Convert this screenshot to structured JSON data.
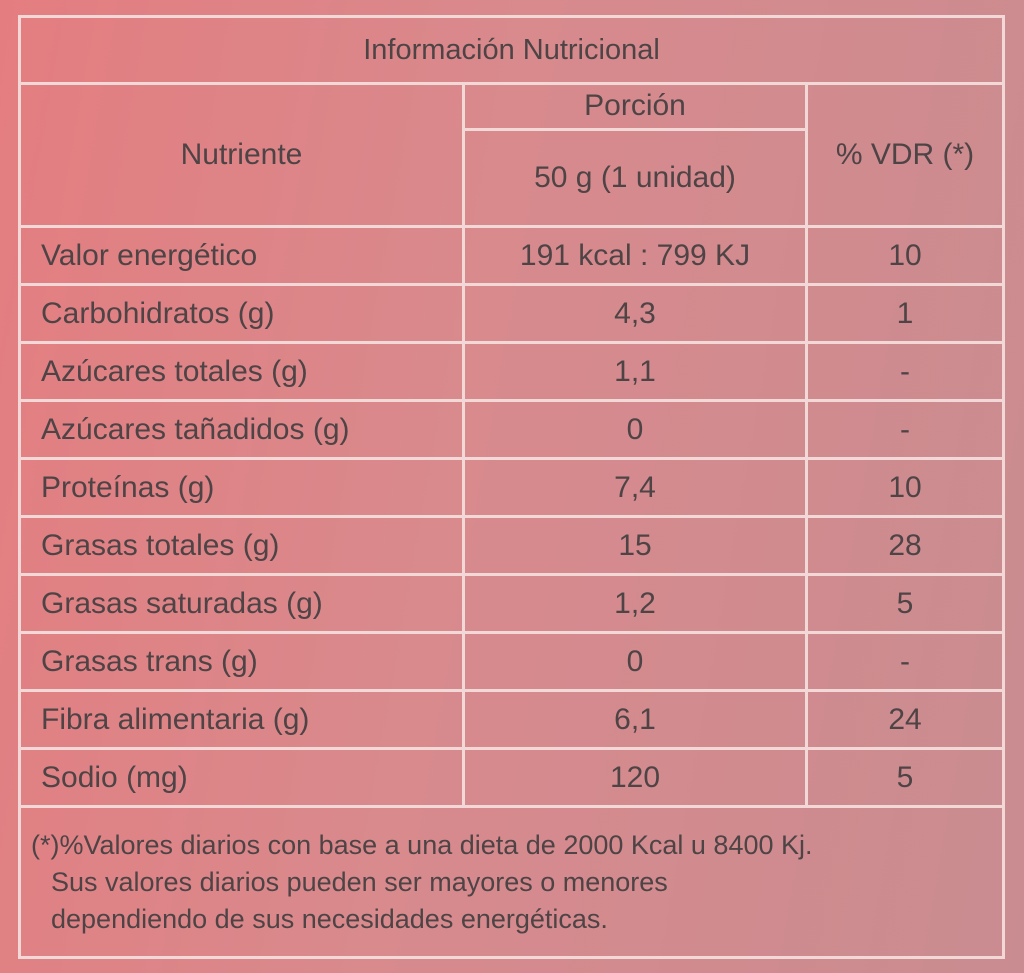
{
  "title": "Información Nutricional",
  "header": {
    "nutrient": "Nutriente",
    "portion": "Porción",
    "portion_size": "50 g (1 unidad)",
    "vdr": "% VDR (*)"
  },
  "rows": [
    [
      "Valor energético",
      "191 kcal : 799 KJ",
      "10"
    ],
    [
      "Carbohidratos (g)",
      "4,3",
      "1"
    ],
    [
      "Azúcares totales (g)",
      "1,1",
      "-"
    ],
    [
      "Azúcares tañadidos (g)",
      "0",
      "-"
    ],
    [
      "Proteínas (g)",
      "7,4",
      "10"
    ],
    [
      "Grasas totales (g)",
      "15",
      "28"
    ],
    [
      "Grasas saturadas (g)",
      "1,2",
      "5"
    ],
    [
      "Grasas trans (g)",
      "0",
      "-"
    ],
    [
      "Fibra alimentaria (g)",
      "6,1",
      "24"
    ],
    [
      "Sodio (mg)",
      "120",
      "5"
    ]
  ],
  "footnote": [
    "(*)%Valores diarios con base a una dieta de 2000 Kcal u 8400 Kj.",
    "Sus valores diarios pueden ser mayores o menores",
    "dependiendo de sus necesidades energéticas."
  ]
}
